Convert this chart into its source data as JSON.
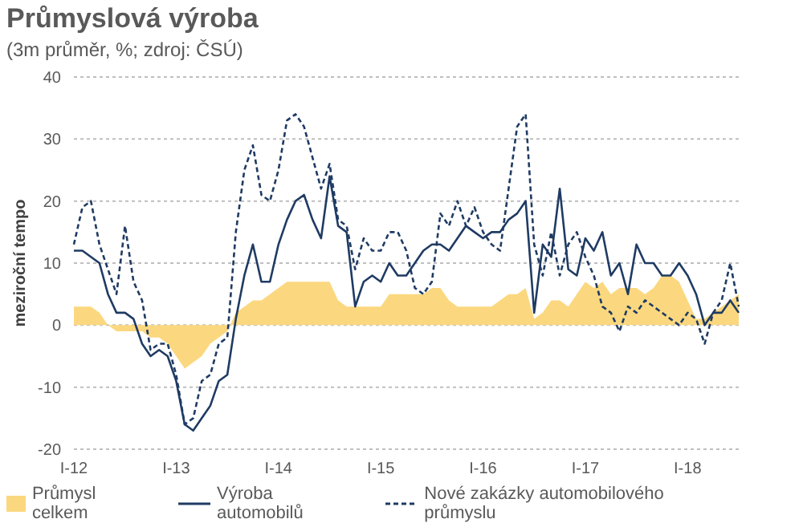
{
  "chart_data": {
    "type": "line",
    "title": "Průmyslová výroba",
    "subtitle": "(3m průměr, %; zdroj: ČSÚ)",
    "ylabel": "meziroční tempo",
    "categories": [
      "I-12",
      null,
      null,
      null,
      null,
      null,
      null,
      null,
      null,
      null,
      null,
      null,
      "I-13",
      null,
      null,
      null,
      null,
      null,
      null,
      null,
      null,
      null,
      null,
      null,
      "I-14",
      null,
      null,
      null,
      null,
      null,
      null,
      null,
      null,
      null,
      null,
      null,
      "I-15",
      null,
      null,
      null,
      null,
      null,
      null,
      null,
      null,
      null,
      null,
      null,
      "I-16",
      null,
      null,
      null,
      null,
      null,
      null,
      null,
      null,
      null,
      null,
      null,
      "I-17",
      null,
      null,
      null,
      null,
      null,
      null,
      null,
      null,
      null,
      null,
      null,
      "I-18",
      null,
      null,
      null,
      null,
      null,
      null
    ],
    "series": [
      {
        "name": "Průmysl celkem",
        "type": "area",
        "color": "#fbd87f",
        "values": [
          3,
          3,
          3,
          2,
          0,
          -1,
          -1,
          -1,
          -1,
          -2,
          -2,
          -3,
          -5,
          -7,
          -6,
          -5,
          -3,
          -2,
          -1,
          2,
          3,
          4,
          4,
          5,
          6,
          7,
          7,
          7,
          7,
          7,
          7,
          4,
          3,
          3,
          3,
          3,
          3,
          5,
          5,
          5,
          5,
          5,
          6,
          6,
          4,
          3,
          3,
          3,
          3,
          3,
          4,
          5,
          5,
          6,
          1,
          2,
          4,
          4,
          3,
          5,
          7,
          6,
          7,
          5,
          6,
          6,
          6,
          5,
          6,
          8,
          8,
          7,
          4,
          1,
          1,
          2,
          3,
          4,
          5
        ]
      },
      {
        "name": "Výroba automobilů",
        "color": "#1f3b63",
        "line_style": "solid",
        "values": [
          12,
          12,
          11,
          10,
          5,
          2,
          2,
          1,
          -3,
          -5,
          -4,
          -5,
          -9,
          -16,
          -17,
          -15,
          -13,
          -9,
          -8,
          1,
          8,
          13,
          7,
          7,
          13,
          17,
          20,
          21,
          17,
          14,
          24,
          16,
          15,
          3,
          7,
          8,
          7,
          10,
          8,
          8,
          10,
          12,
          13,
          13,
          12,
          14,
          16,
          15,
          14,
          15,
          15,
          17,
          18,
          20,
          2,
          13,
          11,
          22,
          9,
          8,
          14,
          12,
          15,
          8,
          10,
          5,
          13,
          10,
          10,
          8,
          8,
          10,
          8,
          5,
          0,
          2,
          2,
          4,
          2
        ]
      },
      {
        "name": "Nové zakázky automobilového průmyslu",
        "color": "#1f3b63",
        "line_style": "dashed",
        "values": [
          13,
          19,
          20,
          13,
          9,
          5,
          16,
          7,
          4,
          -4,
          -3,
          -3,
          -8,
          -16,
          -15,
          -9,
          -8,
          -3,
          -2,
          15,
          25,
          29,
          21,
          20,
          25,
          33,
          34,
          32,
          27,
          22,
          26,
          17,
          16,
          9,
          14,
          12,
          12,
          15,
          15,
          12,
          6,
          5,
          7,
          18,
          16,
          20,
          16,
          19,
          15,
          13,
          12,
          22,
          32,
          34,
          13,
          8,
          15,
          8,
          13,
          15,
          11,
          8,
          3,
          2,
          -1,
          3,
          2,
          4,
          3,
          2,
          1,
          0,
          2,
          1,
          -3,
          2,
          4,
          10,
          3
        ]
      }
    ],
    "ylim": [
      -20,
      40
    ],
    "yticks": [
      -20,
      -10,
      0,
      10,
      20,
      30,
      40
    ],
    "grid": "y",
    "legend": "bottom"
  }
}
